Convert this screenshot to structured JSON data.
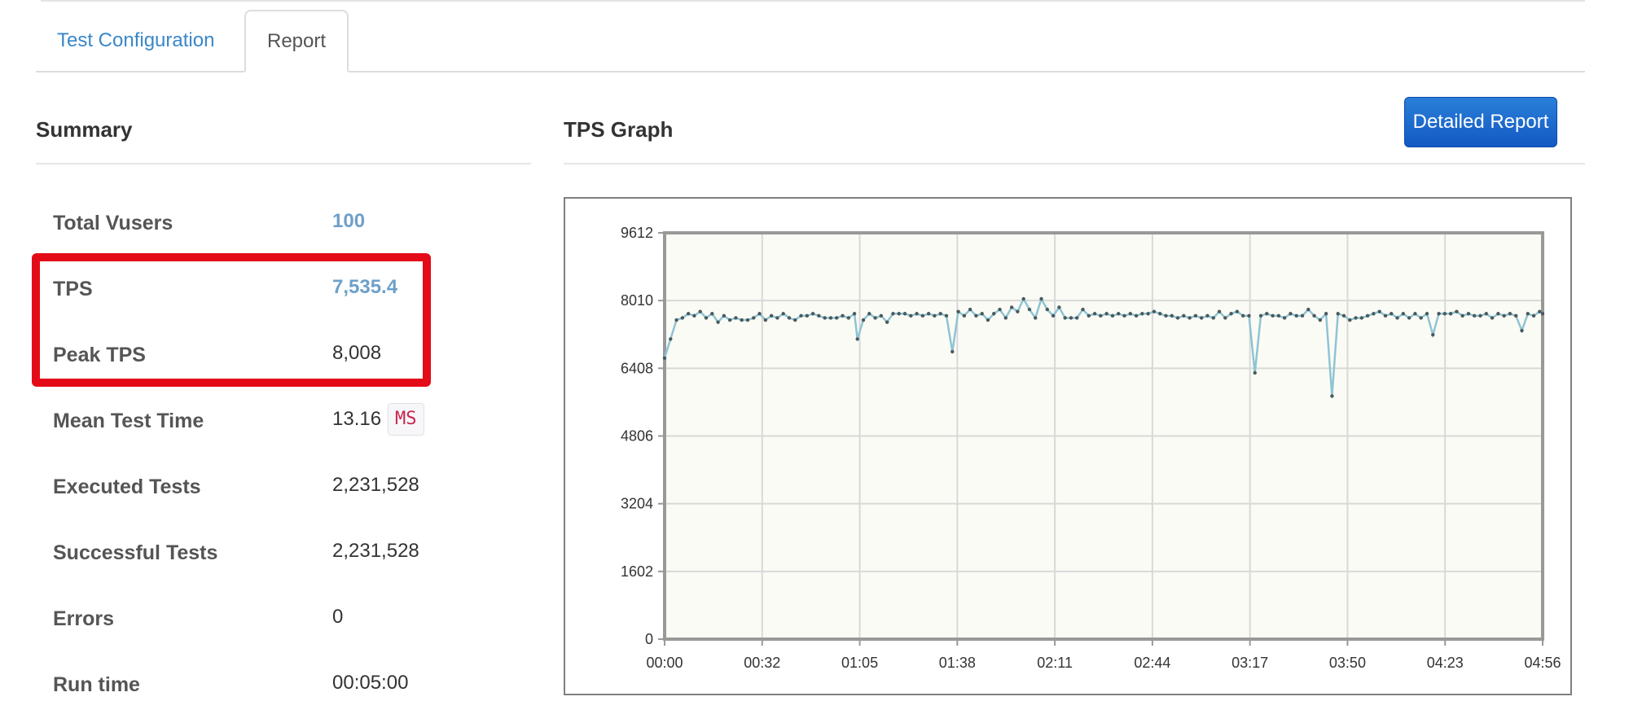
{
  "tabs": [
    {
      "label": "Test Configuration",
      "active": false
    },
    {
      "label": "Report",
      "active": true
    }
  ],
  "summary": {
    "title": "Summary",
    "rows": [
      {
        "label": "Total Vusers",
        "value": "100",
        "link": true
      },
      {
        "label": "TPS",
        "value": "7,535.4",
        "link": true
      },
      {
        "label": "Peak TPS",
        "value": "8,008",
        "link": false
      },
      {
        "label": "Mean Test Time",
        "value": "13.16",
        "unit": "MS",
        "link": false
      },
      {
        "label": "Executed Tests",
        "value": "2,231,528",
        "link": false
      },
      {
        "label": "Successful Tests",
        "value": "2,231,528",
        "link": false
      },
      {
        "label": "Errors",
        "value": "0",
        "link": false
      },
      {
        "label": "Run time",
        "value": "00:05:00",
        "link": false
      }
    ]
  },
  "graph": {
    "title": "TPS Graph",
    "button_label": "Detailed Report"
  },
  "colors": {
    "tab_link": "#3a87c8",
    "value_link": "#6ea0c8",
    "highlight": "#e30b17",
    "button": "#1a6bd0",
    "series_line": "#8ec4d4",
    "plot_bg": "#fbfbf5"
  },
  "chart_data": {
    "type": "line",
    "title": "",
    "xlabel": "",
    "ylabel": "",
    "ylim": [
      0,
      9612
    ],
    "y_ticks": [
      "0",
      "1602",
      "3204",
      "4806",
      "6408",
      "8010",
      "9612"
    ],
    "x_ticks": [
      "00:00",
      "00:32",
      "01:05",
      "01:38",
      "02:11",
      "02:44",
      "03:17",
      "03:50",
      "04:23",
      "04:56"
    ],
    "xlim_seconds": [
      0,
      296
    ],
    "grid": true,
    "series": [
      {
        "points": [
          [
            0,
            6650
          ],
          [
            2,
            7100
          ],
          [
            4,
            7550
          ],
          [
            6,
            7600
          ],
          [
            8,
            7700
          ],
          [
            10,
            7650
          ],
          [
            12,
            7750
          ],
          [
            14,
            7600
          ],
          [
            16,
            7700
          ],
          [
            18,
            7500
          ],
          [
            20,
            7650
          ],
          [
            22,
            7550
          ],
          [
            24,
            7600
          ],
          [
            26,
            7550
          ],
          [
            28,
            7550
          ],
          [
            30,
            7600
          ],
          [
            32,
            7700
          ],
          [
            34,
            7550
          ],
          [
            36,
            7650
          ],
          [
            38,
            7600
          ],
          [
            40,
            7700
          ],
          [
            42,
            7600
          ],
          [
            44,
            7550
          ],
          [
            46,
            7650
          ],
          [
            48,
            7650
          ],
          [
            50,
            7700
          ],
          [
            52,
            7650
          ],
          [
            54,
            7600
          ],
          [
            56,
            7600
          ],
          [
            58,
            7600
          ],
          [
            60,
            7650
          ],
          [
            62,
            7600
          ],
          [
            64,
            7700
          ],
          [
            65,
            7100
          ],
          [
            67,
            7550
          ],
          [
            69,
            7700
          ],
          [
            71,
            7600
          ],
          [
            73,
            7650
          ],
          [
            75,
            7500
          ],
          [
            77,
            7700
          ],
          [
            79,
            7700
          ],
          [
            81,
            7700
          ],
          [
            83,
            7650
          ],
          [
            85,
            7700
          ],
          [
            87,
            7650
          ],
          [
            89,
            7700
          ],
          [
            91,
            7650
          ],
          [
            93,
            7700
          ],
          [
            95,
            7650
          ],
          [
            97,
            6800
          ],
          [
            99,
            7750
          ],
          [
            101,
            7650
          ],
          [
            103,
            7800
          ],
          [
            105,
            7650
          ],
          [
            107,
            7700
          ],
          [
            109,
            7550
          ],
          [
            111,
            7700
          ],
          [
            113,
            7800
          ],
          [
            115,
            7600
          ],
          [
            117,
            7850
          ],
          [
            119,
            7750
          ],
          [
            121,
            8050
          ],
          [
            123,
            7800
          ],
          [
            125,
            7600
          ],
          [
            127,
            8050
          ],
          [
            129,
            7800
          ],
          [
            131,
            7650
          ],
          [
            133,
            7850
          ],
          [
            135,
            7600
          ],
          [
            137,
            7600
          ],
          [
            139,
            7600
          ],
          [
            141,
            7800
          ],
          [
            143,
            7650
          ],
          [
            145,
            7700
          ],
          [
            147,
            7650
          ],
          [
            149,
            7700
          ],
          [
            151,
            7650
          ],
          [
            153,
            7700
          ],
          [
            155,
            7650
          ],
          [
            157,
            7700
          ],
          [
            159,
            7650
          ],
          [
            161,
            7700
          ],
          [
            163,
            7700
          ],
          [
            165,
            7750
          ],
          [
            167,
            7700
          ],
          [
            169,
            7650
          ],
          [
            171,
            7650
          ],
          [
            173,
            7600
          ],
          [
            175,
            7650
          ],
          [
            177,
            7600
          ],
          [
            179,
            7650
          ],
          [
            181,
            7600
          ],
          [
            183,
            7650
          ],
          [
            185,
            7600
          ],
          [
            187,
            7750
          ],
          [
            189,
            7600
          ],
          [
            191,
            7700
          ],
          [
            193,
            7750
          ],
          [
            195,
            7650
          ],
          [
            197,
            7650
          ],
          [
            199,
            6300
          ],
          [
            201,
            7650
          ],
          [
            203,
            7700
          ],
          [
            205,
            7650
          ],
          [
            207,
            7650
          ],
          [
            209,
            7600
          ],
          [
            211,
            7700
          ],
          [
            213,
            7650
          ],
          [
            215,
            7650
          ],
          [
            217,
            7800
          ],
          [
            219,
            7650
          ],
          [
            221,
            7550
          ],
          [
            223,
            7700
          ],
          [
            225,
            5750
          ],
          [
            227,
            7700
          ],
          [
            229,
            7650
          ],
          [
            231,
            7550
          ],
          [
            233,
            7600
          ],
          [
            235,
            7600
          ],
          [
            237,
            7650
          ],
          [
            239,
            7700
          ],
          [
            241,
            7750
          ],
          [
            243,
            7650
          ],
          [
            245,
            7700
          ],
          [
            247,
            7600
          ],
          [
            249,
            7700
          ],
          [
            251,
            7600
          ],
          [
            253,
            7700
          ],
          [
            255,
            7600
          ],
          [
            257,
            7700
          ],
          [
            259,
            7200
          ],
          [
            261,
            7700
          ],
          [
            263,
            7700
          ],
          [
            265,
            7700
          ],
          [
            267,
            7750
          ],
          [
            269,
            7650
          ],
          [
            271,
            7700
          ],
          [
            273,
            7650
          ],
          [
            275,
            7650
          ],
          [
            277,
            7700
          ],
          [
            279,
            7600
          ],
          [
            281,
            7700
          ],
          [
            283,
            7650
          ],
          [
            285,
            7700
          ],
          [
            287,
            7650
          ],
          [
            289,
            7300
          ],
          [
            291,
            7700
          ],
          [
            293,
            7650
          ],
          [
            295,
            7750
          ],
          [
            296,
            7700
          ]
        ]
      }
    ]
  }
}
